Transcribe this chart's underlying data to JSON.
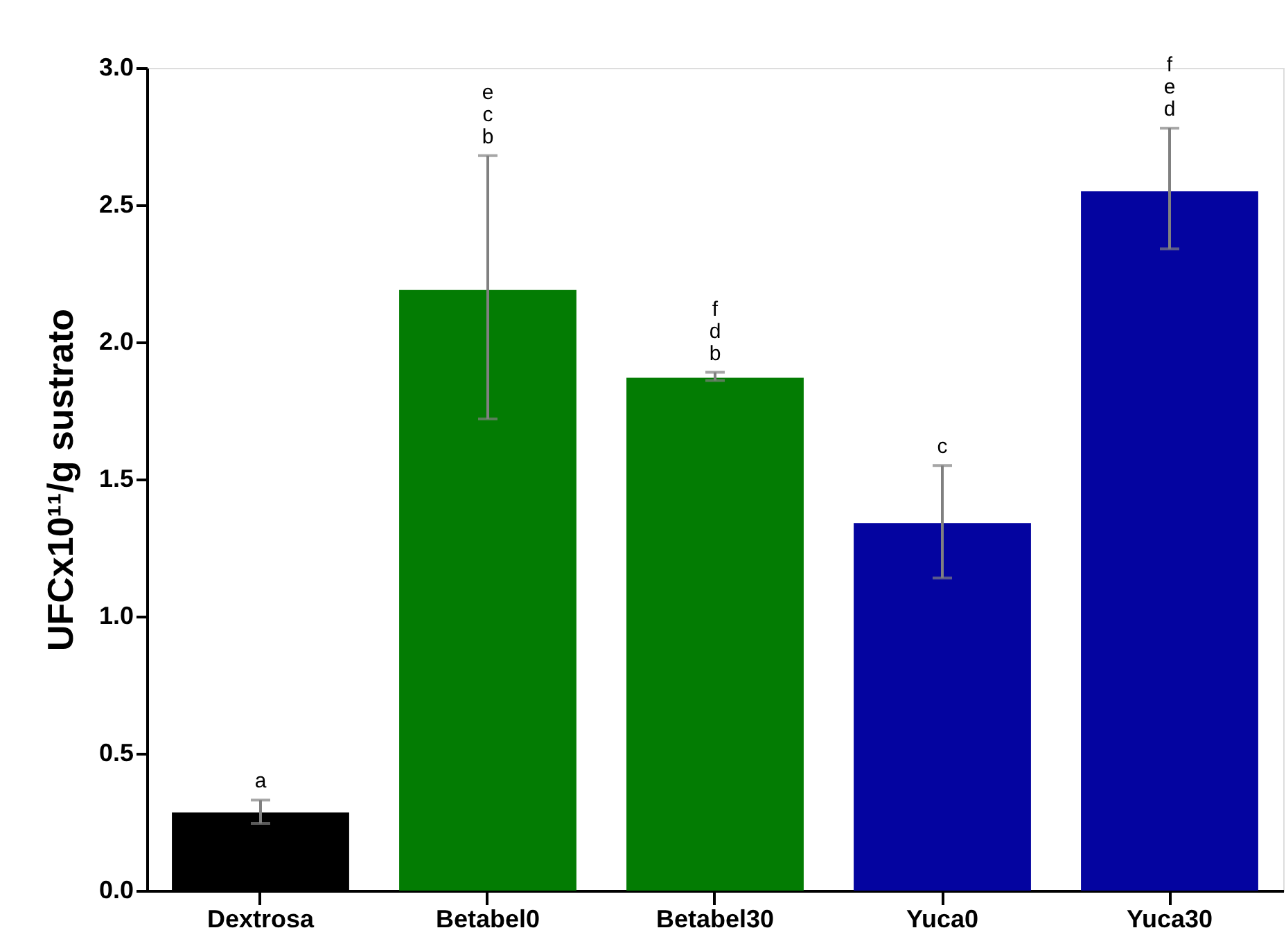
{
  "chart_data": {
    "type": "bar",
    "ylabel": "UFCx10¹¹/g sustrato",
    "categories": [
      "Dextrosa",
      "Betabel0",
      "Betabel30",
      "Yuca0",
      "Yuca30"
    ],
    "values": [
      0.285,
      2.19,
      1.87,
      1.34,
      2.55
    ],
    "colors": [
      "#000000",
      "#037c03",
      "#037c03",
      "#0404a0",
      "#0404a0"
    ],
    "errors": [
      [
        0.245,
        0.33
      ],
      [
        1.72,
        2.68
      ],
      [
        1.86,
        1.89
      ],
      [
        1.14,
        1.55
      ],
      [
        2.34,
        2.78
      ]
    ],
    "ylim": [
      0,
      3.0
    ],
    "yticks": [
      {
        "value": 0,
        "label": "0.0"
      },
      0.5,
      {
        "value": 1,
        "label": "1.0"
      },
      1.5,
      {
        "value": 2,
        "label": "2.0"
      },
      2.5,
      {
        "value": 3,
        "label": "3.0"
      }
    ],
    "grid": false,
    "annotations": [
      "a",
      "e\nc\nb",
      "f\nd\nb",
      "c",
      "f\ne\nd"
    ]
  }
}
